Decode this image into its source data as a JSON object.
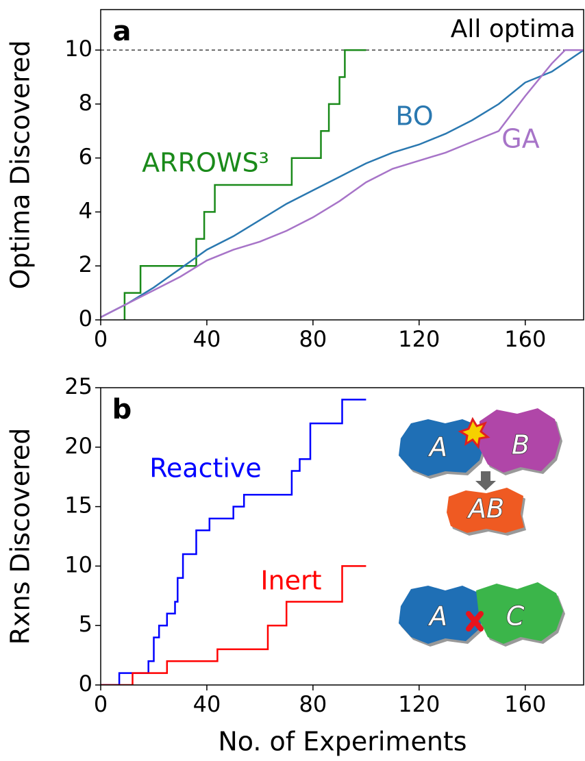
{
  "chart_data": [
    {
      "type": "line",
      "panel_label": "a",
      "ylabel": "Optima Discovered",
      "xlim": [
        0,
        182
      ],
      "ylim": [
        0,
        11.5
      ],
      "xticks": [
        0,
        40,
        80,
        120,
        160
      ],
      "yticks": [
        0,
        2,
        4,
        6,
        8,
        10
      ],
      "hline": 10,
      "hline_label": "All optima",
      "series": [
        {
          "name": "ARROWS³",
          "color": "#1a8a1a",
          "x": [
            9,
            9,
            15,
            15,
            36,
            36,
            39,
            39,
            43,
            43,
            72,
            72,
            83,
            83,
            86,
            86,
            90,
            90,
            92,
            92,
            100
          ],
          "values": [
            0,
            1,
            1,
            2,
            2,
            3,
            3,
            4,
            4,
            5,
            5,
            6,
            6,
            7,
            7,
            8,
            8,
            9,
            9,
            10,
            10
          ]
        },
        {
          "name": "BO",
          "color": "#2a78b0",
          "x": [
            0,
            10,
            20,
            30,
            40,
            50,
            60,
            70,
            80,
            90,
            100,
            110,
            120,
            130,
            140,
            150,
            160,
            170,
            182
          ],
          "values": [
            0.1,
            0.6,
            1.2,
            1.9,
            2.6,
            3.1,
            3.7,
            4.3,
            4.8,
            5.3,
            5.8,
            6.2,
            6.5,
            6.9,
            7.4,
            8.0,
            8.8,
            9.2,
            10
          ]
        },
        {
          "name": "GA",
          "color": "#a774c8",
          "x": [
            0,
            10,
            20,
            30,
            40,
            50,
            60,
            70,
            80,
            90,
            100,
            110,
            120,
            130,
            140,
            150,
            160,
            170,
            175,
            182
          ],
          "values": [
            0.1,
            0.6,
            1.1,
            1.6,
            2.2,
            2.6,
            2.9,
            3.3,
            3.8,
            4.4,
            5.1,
            5.6,
            5.9,
            6.2,
            6.6,
            7.0,
            8.3,
            9.5,
            10,
            10
          ]
        }
      ]
    },
    {
      "type": "line",
      "panel_label": "b",
      "ylabel": "Rxns Discovered",
      "xlabel": "No. of Experiments",
      "xlim": [
        0,
        182
      ],
      "ylim": [
        0,
        25
      ],
      "xticks": [
        0,
        40,
        80,
        120,
        160
      ],
      "yticks": [
        0,
        5,
        10,
        15,
        20,
        25
      ],
      "series": [
        {
          "name": "Reactive",
          "color": "#0000ff",
          "x": [
            0,
            7,
            7,
            18,
            18,
            20,
            20,
            22,
            22,
            25,
            25,
            28,
            28,
            29,
            29,
            31,
            31,
            36,
            36,
            41,
            41,
            50,
            50,
            54,
            54,
            72,
            72,
            75,
            75,
            79,
            79,
            91,
            91,
            100
          ],
          "values": [
            0,
            0,
            1,
            1,
            2,
            2,
            4,
            4,
            5,
            5,
            6,
            6,
            7,
            7,
            9,
            9,
            11,
            11,
            13,
            13,
            14,
            14,
            15,
            15,
            16,
            16,
            18,
            18,
            19,
            19,
            22,
            22,
            24,
            24
          ]
        },
        {
          "name": "Inert",
          "color": "#ff0000",
          "x": [
            0,
            12,
            12,
            25,
            25,
            44,
            44,
            63,
            63,
            70,
            70,
            91,
            91,
            100
          ],
          "values": [
            0,
            0,
            1,
            1,
            2,
            2,
            3,
            3,
            5,
            5,
            7,
            7,
            10,
            10
          ]
        }
      ]
    }
  ],
  "illustration": {
    "labels": [
      "A",
      "B",
      "AB",
      "A",
      "C"
    ]
  }
}
